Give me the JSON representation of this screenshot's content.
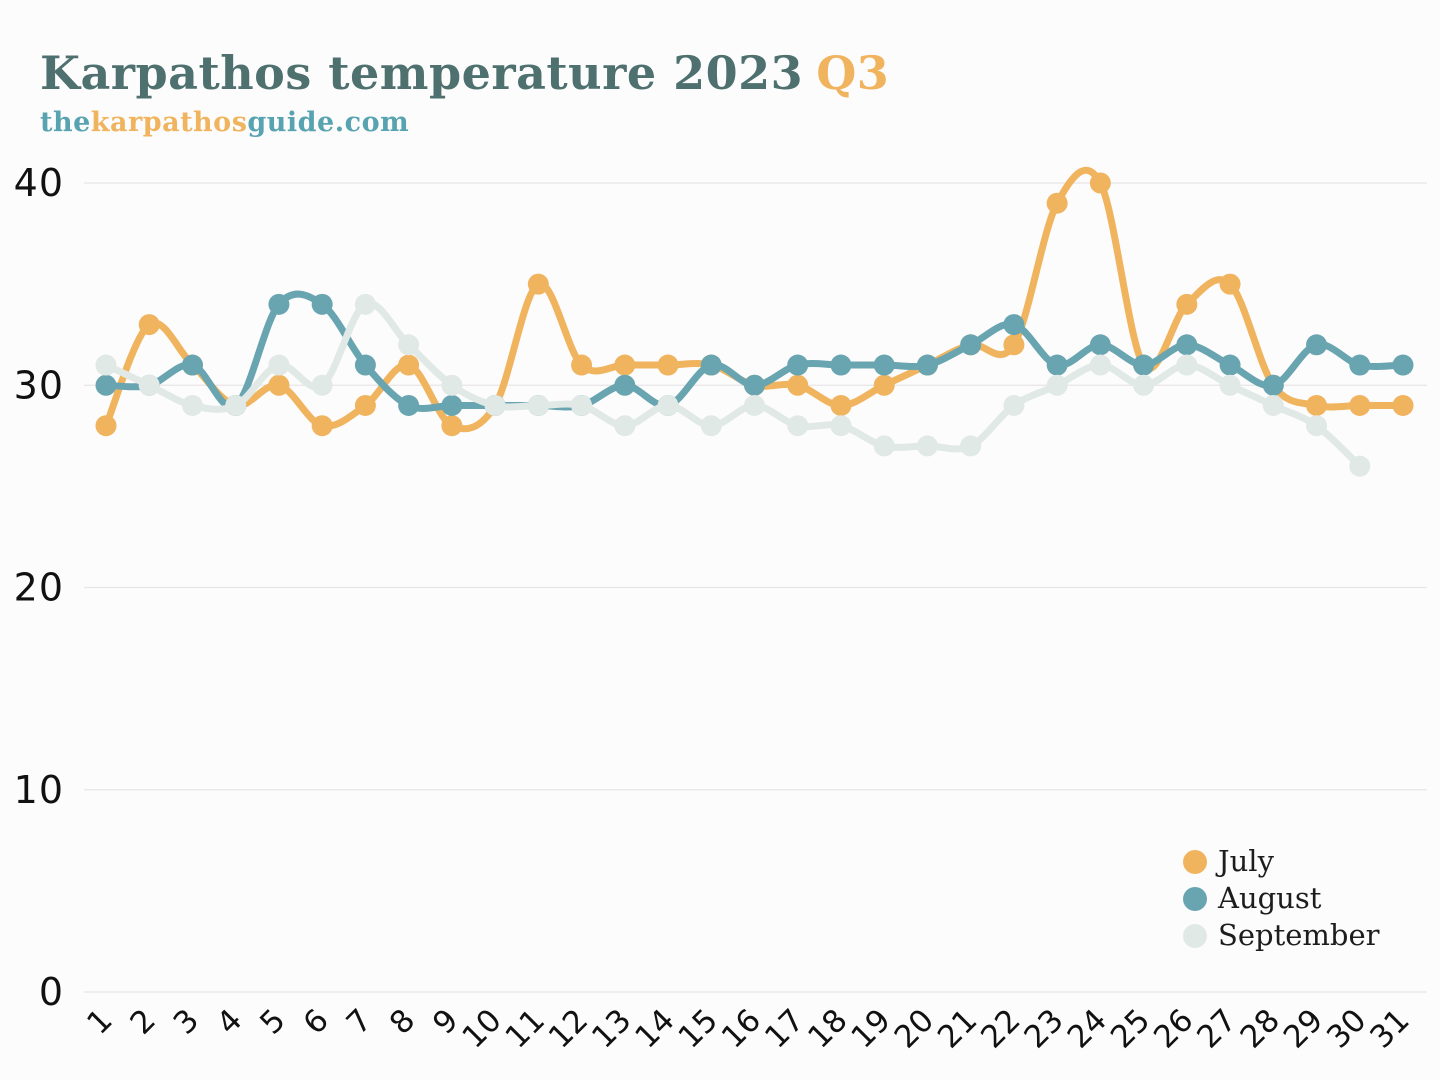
{
  "header": {
    "title_main": "Karpathos temperature 2023",
    "title_highlight": "Q3",
    "subtitle": [
      {
        "text": "the",
        "color": "#58a3b0"
      },
      {
        "text": "karpathos",
        "color": "#f0b45f"
      },
      {
        "text": "guide.com",
        "color": "#58a3b0"
      }
    ]
  },
  "chart_data": {
    "type": "line",
    "title": "Karpathos temperature 2023 Q3",
    "x": [
      1,
      2,
      3,
      4,
      5,
      6,
      7,
      8,
      9,
      10,
      11,
      12,
      13,
      14,
      15,
      16,
      17,
      18,
      19,
      20,
      21,
      22,
      23,
      24,
      25,
      26,
      27,
      28,
      29,
      30,
      31
    ],
    "y_ticks": [
      0,
      10,
      20,
      30,
      40
    ],
    "ylim": [
      0,
      40
    ],
    "grid": "horizontal",
    "legend_position": "bottom-right",
    "line_style": "smooth",
    "series": [
      {
        "name": "July",
        "color": "#f0b45f",
        "values": [
          28,
          33,
          31,
          29,
          30,
          28,
          29,
          31,
          28,
          29,
          35,
          31,
          31,
          31,
          31,
          30,
          30,
          29,
          30,
          31,
          32,
          32,
          39,
          40,
          31,
          34,
          35,
          30,
          29,
          29,
          29
        ]
      },
      {
        "name": "August",
        "color": "#69a5b0",
        "values": [
          30,
          30,
          31,
          29,
          34,
          34,
          31,
          29,
          29,
          29,
          29,
          29,
          30,
          29,
          31,
          30,
          31,
          31,
          31,
          31,
          32,
          33,
          31,
          32,
          31,
          32,
          31,
          30,
          32,
          31,
          31
        ]
      },
      {
        "name": "September",
        "color": "#e0e9e5",
        "values": [
          31,
          30,
          29,
          29,
          31,
          30,
          34,
          32,
          30,
          29,
          29,
          29,
          28,
          29,
          28,
          29,
          28,
          28,
          27,
          27,
          27,
          29,
          30,
          31,
          30,
          31,
          30,
          29,
          28,
          26
        ]
      }
    ]
  },
  "colors": {
    "background": "#fdfcfc",
    "title": "#4e7170",
    "accent_orange": "#f0b45f",
    "accent_teal": "#69a5b0",
    "accent_pale": "#e0e9e5",
    "grid": "#e7e5e5",
    "axis_text": "#111111"
  }
}
